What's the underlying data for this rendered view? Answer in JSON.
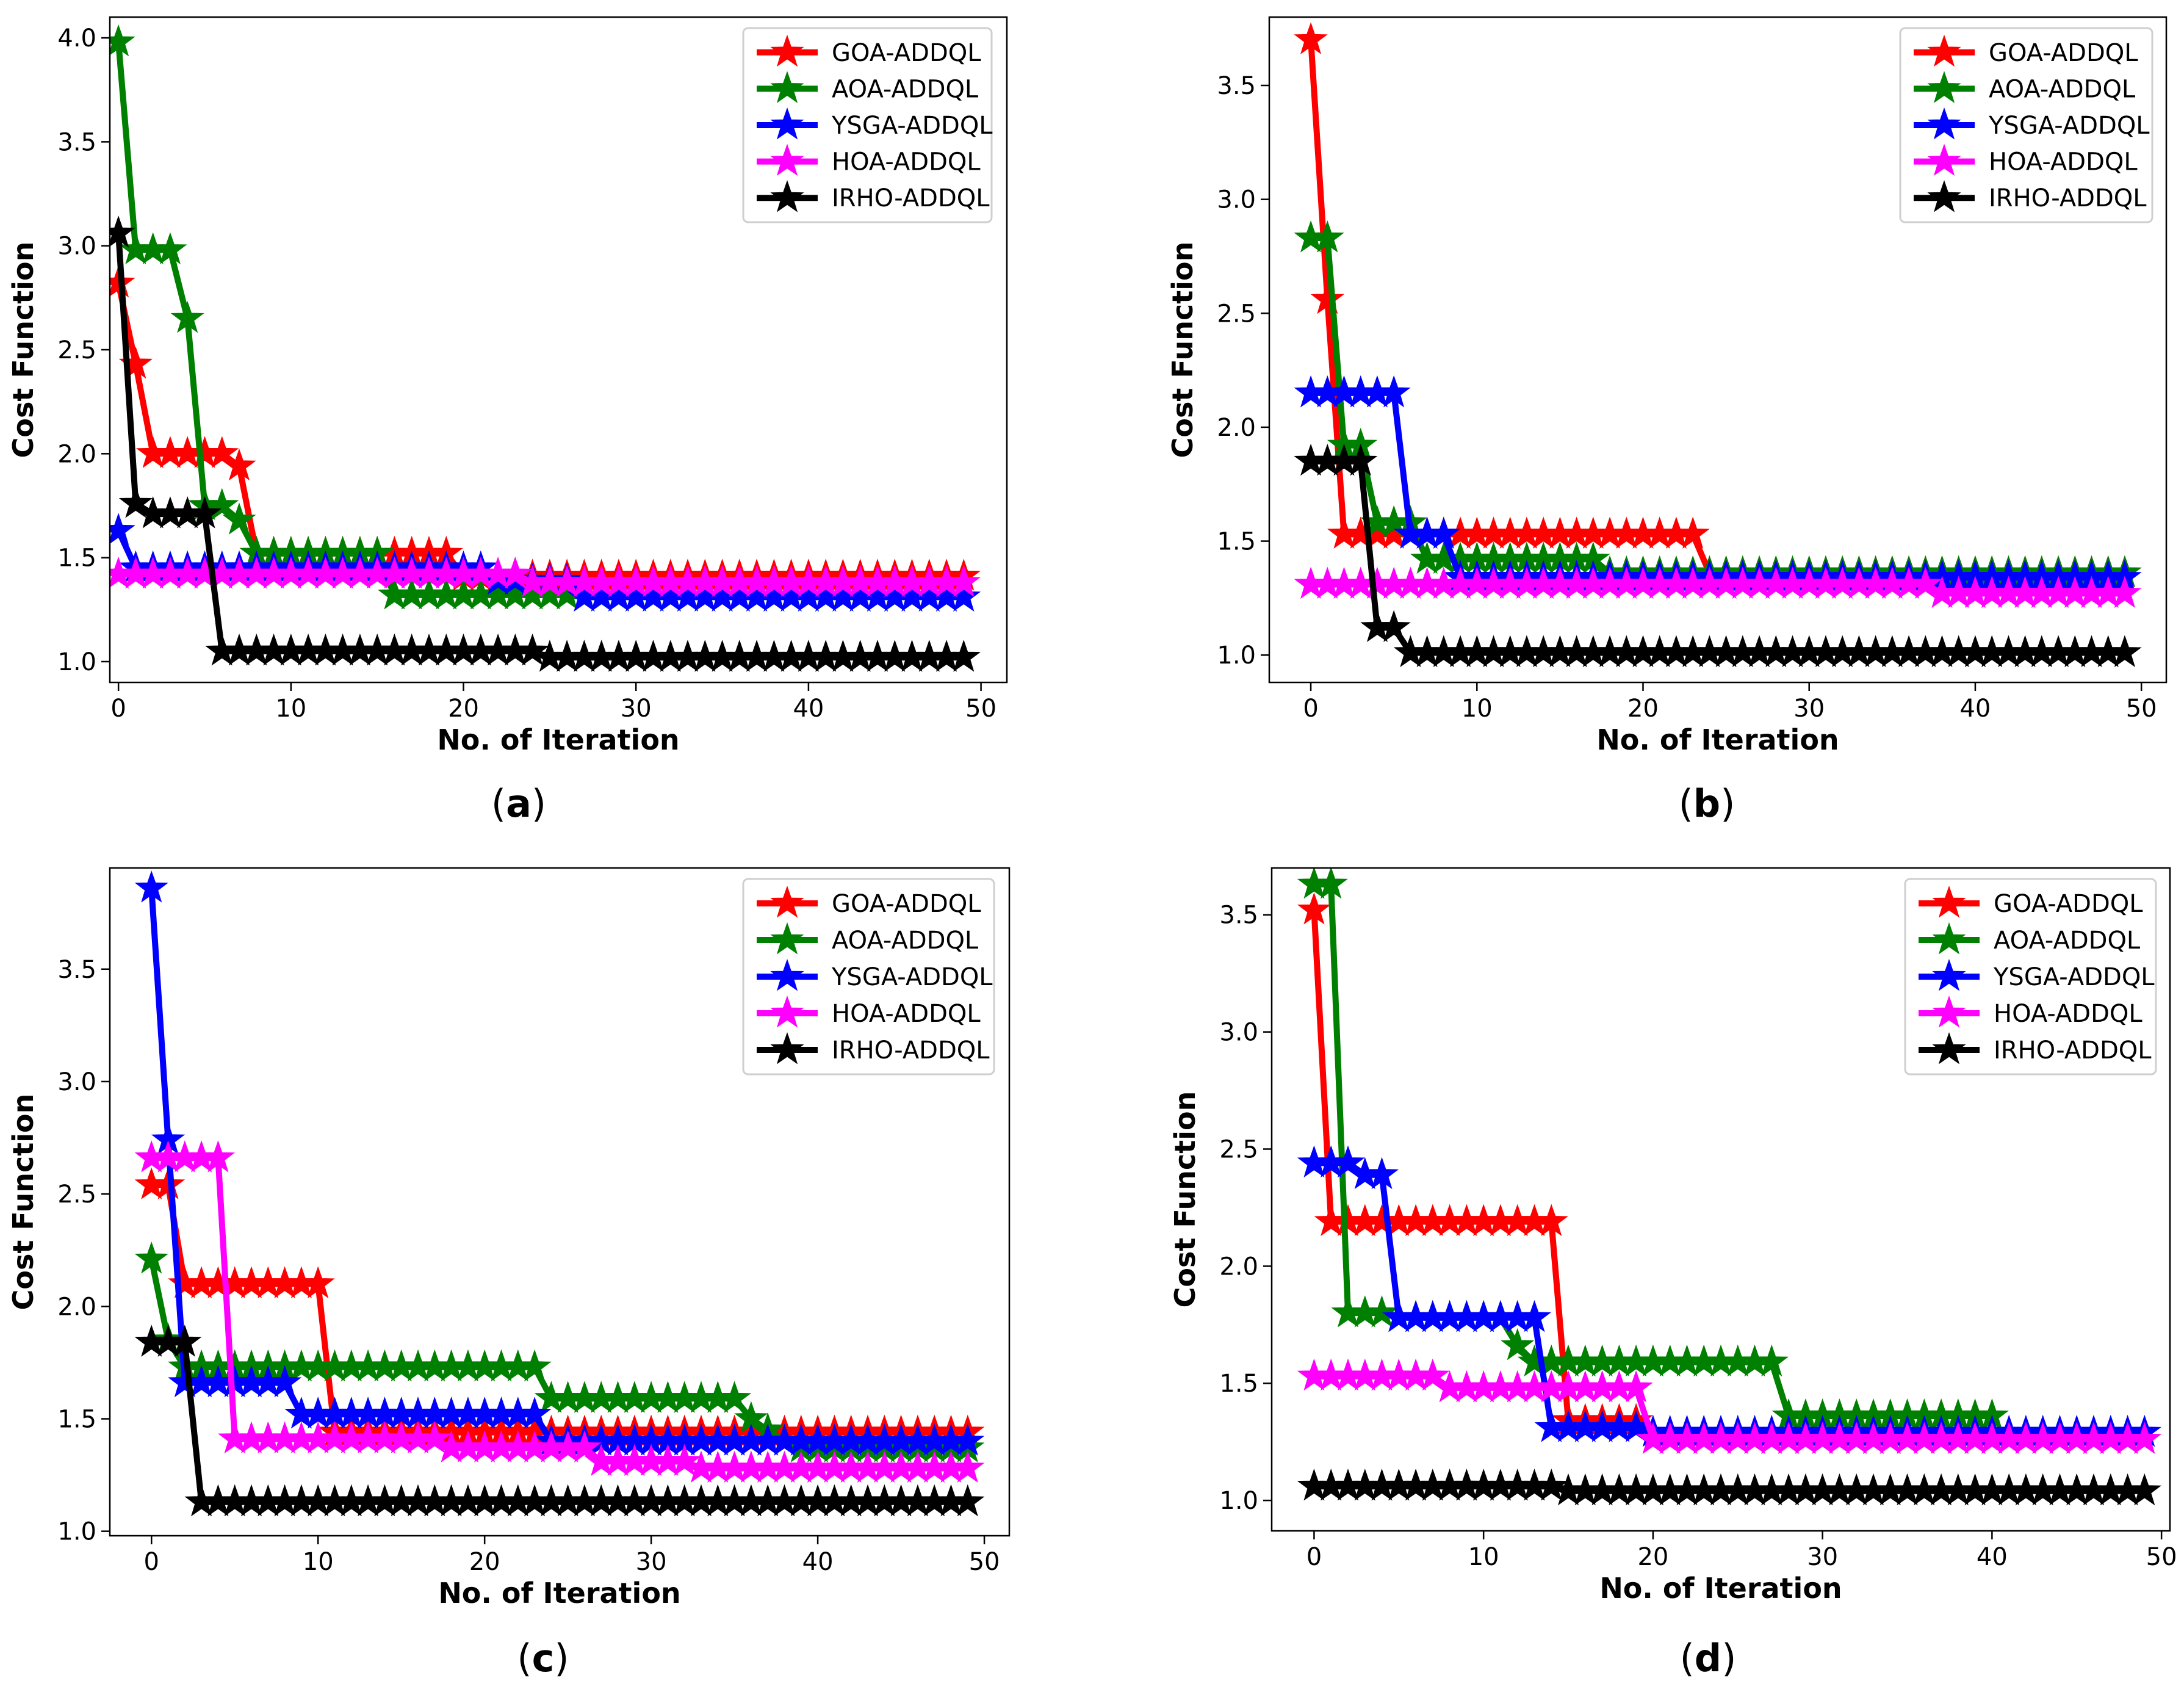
{
  "figure": {
    "panel_labels": [
      "a",
      "b",
      "c",
      "d"
    ]
  },
  "colors": {
    "GOA-ADDQL": "#ff0000",
    "AOA-ADDQL": "#008000",
    "YSGA-ADDQL": "#0000ff",
    "HOA-ADDQL": "#ff00ff",
    "IRHO-ADDQL": "#000000"
  },
  "chart_data": [
    {
      "type": "line",
      "panel": "a",
      "title": "",
      "xlabel": "No. of Iteration",
      "ylabel": "Cost Function",
      "xlim": [
        -0.5,
        51.5
      ],
      "ylim": [
        0.9,
        4.1
      ],
      "xticks": [
        0,
        10,
        20,
        30,
        40,
        50
      ],
      "yticks": [
        1.0,
        1.5,
        2.0,
        2.5,
        3.0,
        3.5,
        4.0
      ],
      "grid": false,
      "legend_position": "top-right",
      "marker": "star",
      "series": [
        {
          "name": "GOA-ADDQL",
          "segments": [
            [
              0,
              2.82
            ],
            [
              1,
              2.43
            ],
            [
              2,
              2.0,
              6
            ],
            [
              7,
              1.94,
              7
            ],
            [
              8,
              1.52,
              19
            ],
            [
              20,
              1.41,
              49
            ]
          ]
        },
        {
          "name": "AOA-ADDQL",
          "segments": [
            [
              0,
              3.98
            ],
            [
              1,
              2.98,
              3
            ],
            [
              4,
              2.65
            ],
            [
              5,
              1.75,
              6
            ],
            [
              7,
              1.68
            ],
            [
              8,
              1.52,
              15
            ],
            [
              16,
              1.32,
              26
            ],
            [
              27,
              1.31,
              49
            ]
          ]
        },
        {
          "name": "YSGA-ADDQL",
          "segments": [
            [
              0,
              1.63
            ],
            [
              1,
              1.45,
              21
            ],
            [
              22,
              1.39,
              26
            ],
            [
              27,
              1.31,
              49
            ]
          ]
        },
        {
          "name": "HOA-ADDQL",
          "segments": [
            [
              0,
              1.42,
              23
            ],
            [
              24,
              1.38,
              49
            ]
          ]
        },
        {
          "name": "IRHO-ADDQL",
          "segments": [
            [
              0,
              3.06
            ],
            [
              1,
              1.76
            ],
            [
              2,
              1.71,
              5
            ],
            [
              6,
              1.05,
              24
            ],
            [
              25,
              1.02,
              49
            ]
          ]
        }
      ]
    },
    {
      "type": "line",
      "panel": "b",
      "title": "",
      "xlabel": "No. of Iteration",
      "ylabel": "Cost Function",
      "xlim": [
        -2.5,
        51.5
      ],
      "ylim": [
        0.88,
        3.8
      ],
      "xticks": [
        0,
        10,
        20,
        30,
        40,
        50
      ],
      "yticks": [
        1.0,
        1.5,
        2.0,
        2.5,
        3.0,
        3.5
      ],
      "grid": false,
      "legend_position": "top-right",
      "marker": "star",
      "series": [
        {
          "name": "GOA-ADDQL",
          "segments": [
            [
              0,
              3.7
            ],
            [
              1,
              2.56
            ],
            [
              2,
              1.53,
              23
            ],
            [
              24,
              1.36,
              49
            ]
          ]
        },
        {
          "name": "AOA-ADDQL",
          "segments": [
            [
              0,
              2.83,
              1
            ],
            [
              2,
              1.92,
              3
            ],
            [
              4,
              1.58,
              6
            ],
            [
              7,
              1.42,
              17
            ],
            [
              18,
              1.36,
              49
            ]
          ]
        },
        {
          "name": "YSGA-ADDQL",
          "segments": [
            [
              0,
              2.15,
              5
            ],
            [
              6,
              1.53,
              8
            ],
            [
              9,
              1.34,
              49
            ]
          ]
        },
        {
          "name": "HOA-ADDQL",
          "segments": [
            [
              0,
              1.31,
              37
            ],
            [
              38,
              1.27,
              49
            ]
          ]
        },
        {
          "name": "IRHO-ADDQL",
          "segments": [
            [
              0,
              1.85,
              3
            ],
            [
              4,
              1.12,
              5
            ],
            [
              6,
              1.01,
              49
            ]
          ]
        }
      ]
    },
    {
      "type": "line",
      "panel": "c",
      "title": "",
      "xlabel": "No. of Iteration",
      "ylabel": "Cost Function",
      "xlim": [
        -2.5,
        51.5
      ],
      "ylim": [
        0.98,
        3.95
      ],
      "xticks": [
        0,
        10,
        20,
        30,
        40,
        50
      ],
      "yticks": [
        1.0,
        1.5,
        2.0,
        2.5,
        3.0,
        3.5
      ],
      "grid": false,
      "legend_position": "top-right",
      "marker": "star",
      "series": [
        {
          "name": "GOA-ADDQL",
          "segments": [
            [
              0,
              2.54,
              1
            ],
            [
              2,
              2.1,
              10
            ],
            [
              11,
              1.44,
              49
            ]
          ]
        },
        {
          "name": "AOA-ADDQL",
          "segments": [
            [
              0,
              2.21
            ],
            [
              1,
              1.85
            ],
            [
              2,
              1.73,
              23
            ],
            [
              24,
              1.59,
              35
            ],
            [
              36,
              1.5
            ],
            [
              37,
              1.45
            ],
            [
              38,
              1.4
            ],
            [
              39,
              1.37,
              49
            ]
          ]
        },
        {
          "name": "YSGA-ADDQL",
          "segments": [
            [
              0,
              3.86
            ],
            [
              1,
              2.74
            ],
            [
              2,
              1.66,
              8
            ],
            [
              9,
              1.52,
              23
            ],
            [
              24,
              1.4,
              49
            ]
          ]
        },
        {
          "name": "HOA-ADDQL",
          "segments": [
            [
              0,
              2.66,
              4
            ],
            [
              5,
              1.41,
              17
            ],
            [
              18,
              1.37,
              26
            ],
            [
              27,
              1.31,
              32
            ],
            [
              33,
              1.28,
              49
            ]
          ]
        },
        {
          "name": "IRHO-ADDQL",
          "segments": [
            [
              0,
              1.84,
              2
            ],
            [
              3,
              1.13,
              49
            ]
          ]
        }
      ]
    },
    {
      "type": "line",
      "panel": "d",
      "title": "",
      "xlabel": "No. of Iteration",
      "ylabel": "Cost Function",
      "xlim": [
        -2.5,
        50.5
      ],
      "ylim": [
        0.87,
        3.7
      ],
      "xticks": [
        0,
        10,
        20,
        30,
        40,
        50
      ],
      "yticks": [
        1.0,
        1.5,
        2.0,
        2.5,
        3.0,
        3.5
      ],
      "grid": false,
      "legend_position": "top-right",
      "marker": "star",
      "series": [
        {
          "name": "GOA-ADDQL",
          "segments": [
            [
              0,
              3.52
            ],
            [
              1,
              2.19,
              14
            ],
            [
              15,
              1.34,
              19
            ],
            [
              20,
              1.26,
              49
            ]
          ]
        },
        {
          "name": "AOA-ADDQL",
          "segments": [
            [
              0,
              3.63,
              1
            ],
            [
              2,
              1.8,
              4
            ],
            [
              5,
              1.78,
              11
            ],
            [
              12,
              1.66
            ],
            [
              13,
              1.59,
              27
            ],
            [
              28,
              1.36,
              40
            ]
          ]
        },
        {
          "name": "YSGA-ADDQL",
          "segments": [
            [
              0,
              2.44,
              2
            ],
            [
              3,
              2.39,
              4
            ],
            [
              5,
              1.78,
              13
            ],
            [
              14,
              1.31,
              19
            ],
            [
              20,
              1.29,
              49
            ]
          ]
        },
        {
          "name": "HOA-ADDQL",
          "segments": [
            [
              0,
              1.53,
              7
            ],
            [
              8,
              1.48,
              19
            ],
            [
              20,
              1.26,
              49
            ]
          ]
        },
        {
          "name": "IRHO-ADDQL",
          "segments": [
            [
              0,
              1.06,
              14
            ],
            [
              15,
              1.04,
              49
            ]
          ]
        }
      ]
    }
  ]
}
